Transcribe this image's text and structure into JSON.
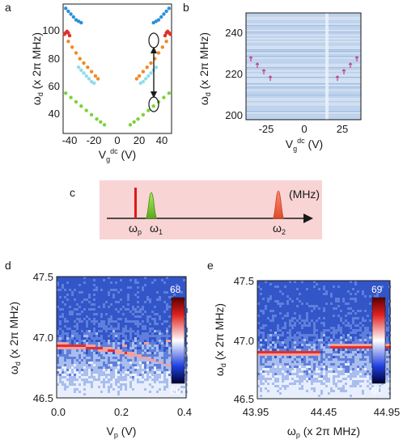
{
  "panels": {
    "a": {
      "letter": "a",
      "ylabel": "ω",
      "ylabel_sub": "d",
      "ylabel_unit": " (x 2π MHz)",
      "xlabel": "V",
      "xlabel_sub": "g",
      "xlabel_sup": "dc",
      "xlabel_unit": " (V)",
      "xticks": [
        "-40",
        "-20",
        "0",
        "20",
        "40"
      ],
      "yticks": [
        "40",
        "60",
        "80",
        "100"
      ]
    },
    "b": {
      "letter": "b",
      "ylabel": "ω",
      "ylabel_sub": "d",
      "ylabel_unit": " (x 2π MHz)",
      "xlabel": "V",
      "xlabel_sub": "g",
      "xlabel_sup": "dc",
      "xlabel_unit": " (V)",
      "xticks": [
        "-25",
        "0",
        "25"
      ],
      "yticks": [
        "200",
        "220",
        "240"
      ]
    },
    "c": {
      "letter": "c",
      "unit": "(MHz)",
      "peaks": [
        {
          "label": "ω",
          "sub": "p"
        },
        {
          "label": "ω",
          "sub": "1"
        },
        {
          "label": "ω",
          "sub": "2"
        }
      ]
    },
    "d": {
      "letter": "d",
      "ylabel": "ω",
      "ylabel_sub": "d",
      "ylabel_unit": " (x 2π MHz)",
      "xlabel": "V",
      "xlabel_sub": "p",
      "xlabel_unit": " (V)",
      "xticks": [
        "0.0",
        "0.2",
        "0.4"
      ],
      "yticks": [
        "46.5",
        "47.0",
        "47.5"
      ],
      "cbar_max": "68",
      "cbar_min": "60"
    },
    "e": {
      "letter": "e",
      "ylabel": "ω",
      "ylabel_sub": "d",
      "ylabel_unit": " (x 2π MHz)",
      "xlabel": "ω",
      "xlabel_sub": "p",
      "xlabel_unit": " (x 2π MHz)",
      "xticks": [
        "43.95",
        "44.45",
        "44.95"
      ],
      "yticks": [
        "46.5",
        "47.0",
        "47.5"
      ],
      "cbar_max": "69",
      "cbar_min": "60"
    }
  },
  "chart_data": [
    {
      "type": "scatter",
      "panel": "a",
      "xlim": [
        -42,
        42
      ],
      "ylim": [
        28,
        118
      ],
      "series": [
        {
          "color": "#2f8fd8",
          "x": [
            -40,
            -38,
            -36,
            -34,
            -32,
            -30,
            -28
          ],
          "y": [
            115,
            113,
            111,
            109,
            107,
            106,
            105
          ]
        },
        {
          "color": "#2f8fd8",
          "x": [
            28,
            30,
            32,
            34,
            36,
            38,
            40
          ],
          "y": [
            105,
            106,
            107,
            109,
            111,
            113,
            115
          ]
        },
        {
          "color": "#e0312b",
          "x": [
            -41,
            -40,
            -39,
            -38,
            -37
          ],
          "y": [
            97,
            98,
            99,
            98,
            96
          ]
        },
        {
          "color": "#e0312b",
          "x": [
            37,
            38,
            39,
            40,
            41
          ],
          "y": [
            96,
            98,
            99,
            98,
            97
          ]
        },
        {
          "color": "#f08a24",
          "x": [
            -38,
            -35,
            -32,
            -29,
            -26,
            -23,
            -20,
            -17,
            -15
          ],
          "y": [
            92,
            88,
            84,
            80,
            77,
            74,
            71,
            68,
            66
          ]
        },
        {
          "color": "#f08a24",
          "x": [
            15,
            17,
            20,
            23,
            26,
            29,
            32,
            35,
            38
          ],
          "y": [
            66,
            68,
            71,
            74,
            77,
            80,
            84,
            88,
            92
          ]
        },
        {
          "color": "#8fdcef",
          "x": [
            -30,
            -28,
            -26,
            -24,
            -22,
            -20,
            -18
          ],
          "y": [
            74,
            72,
            70,
            68,
            66,
            64,
            63
          ]
        },
        {
          "color": "#8fdcef",
          "x": [
            18,
            20,
            22,
            24,
            26,
            28,
            30
          ],
          "y": [
            63,
            64,
            66,
            68,
            70,
            72,
            74
          ]
        },
        {
          "color": "#7bd33a",
          "x": [
            -40,
            -36,
            -32,
            -28,
            -24,
            -20,
            -16,
            -13,
            -10
          ],
          "y": [
            56,
            53,
            50,
            47,
            44,
            41,
            38,
            36,
            34
          ]
        },
        {
          "color": "#7bd33a",
          "x": [
            10,
            13,
            16,
            20,
            24,
            28,
            32,
            36,
            40
          ],
          "y": [
            34,
            36,
            38,
            41,
            44,
            47,
            50,
            53,
            56
          ]
        }
      ]
    },
    {
      "type": "heatmap",
      "panel": "b",
      "xlim": [
        -40,
        40
      ],
      "ylim": [
        200,
        250
      ]
    },
    {
      "type": "heatmap",
      "panel": "d",
      "xlim": [
        0.0,
        0.4
      ],
      "ylim": [
        46.5,
        47.5
      ],
      "clim": [
        60,
        68
      ]
    },
    {
      "type": "heatmap",
      "panel": "e",
      "xlim": [
        43.95,
        44.95
      ],
      "ylim": [
        46.5,
        47.5
      ],
      "clim": [
        60,
        69
      ]
    }
  ]
}
